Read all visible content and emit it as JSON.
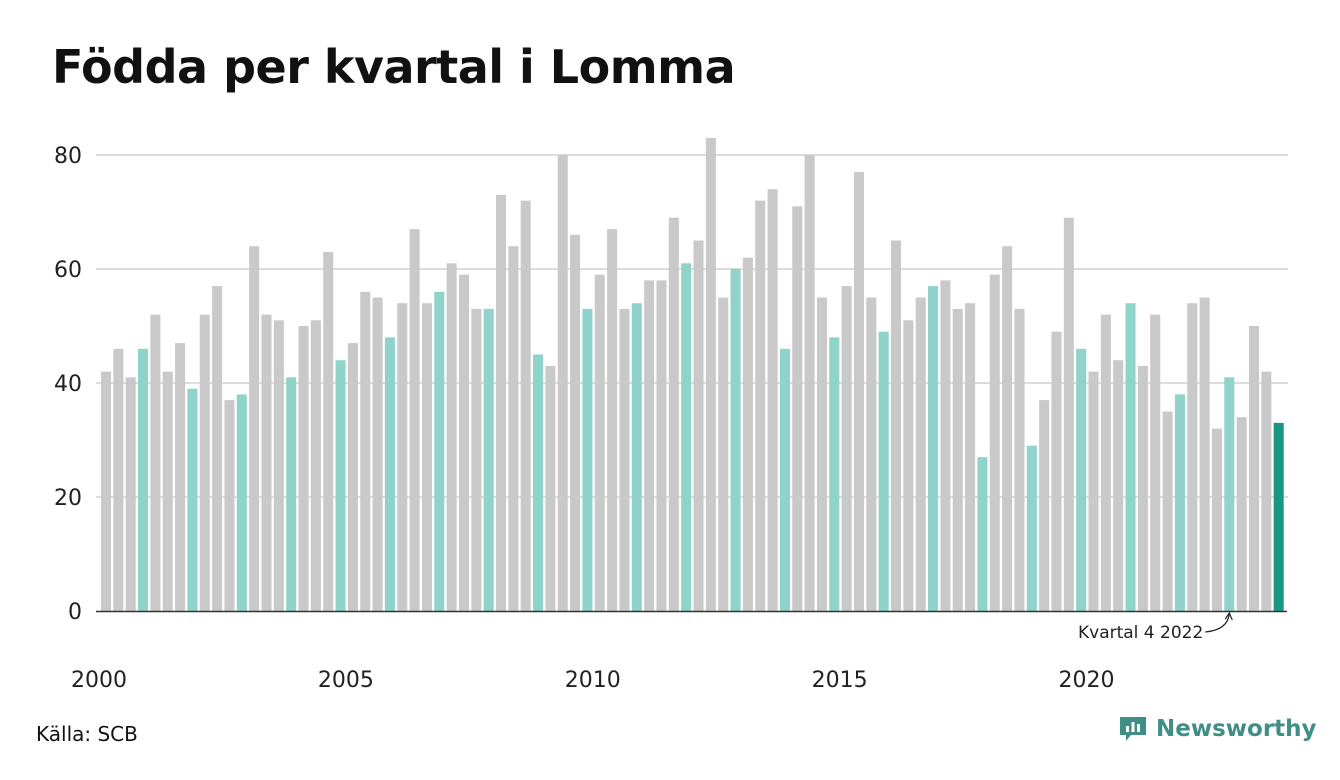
{
  "title": "Födda per kvartal i Lomma",
  "source": "Källa: SCB",
  "brand": {
    "name": "Newsworthy",
    "icon": "newsworthy-logo-icon"
  },
  "colors": {
    "other": "#c9c9c9",
    "q4": "#8fd3cb",
    "highlight": "#1a9686",
    "grid": "#dcdcdc"
  },
  "chart_data": {
    "type": "bar",
    "title": "Födda per kvartal i Lomma",
    "xlabel": "",
    "ylabel": "",
    "ylim": [
      0,
      85
    ],
    "yticks": [
      0,
      20,
      40,
      60,
      80
    ],
    "xticks": [
      "2000",
      "2005",
      "2010",
      "2015",
      "2020"
    ],
    "grid": true,
    "start_year": 2000,
    "annotation": "Kvartal 4 2022",
    "values": [
      42,
      46,
      41,
      46,
      52,
      42,
      47,
      39,
      52,
      57,
      37,
      38,
      64,
      52,
      51,
      41,
      50,
      51,
      63,
      44,
      47,
      56,
      55,
      48,
      54,
      67,
      54,
      56,
      61,
      59,
      53,
      53,
      73,
      64,
      72,
      45,
      43,
      80,
      66,
      53,
      59,
      67,
      53,
      54,
      58,
      58,
      69,
      61,
      65,
      83,
      55,
      60,
      62,
      72,
      74,
      46,
      71,
      80,
      55,
      48,
      57,
      77,
      55,
      49,
      65,
      51,
      55,
      57,
      58,
      53,
      54,
      27,
      59,
      64,
      53,
      29,
      37,
      49,
      69,
      46,
      42,
      52,
      44,
      54,
      43,
      52,
      35,
      38,
      54,
      55,
      32,
      41,
      34,
      50,
      42,
      33
    ]
  }
}
